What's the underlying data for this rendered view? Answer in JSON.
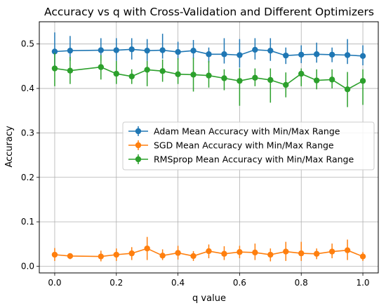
{
  "chart_data": {
    "type": "line",
    "title": "Accuracy vs q with Cross-Validation and Different Optimizers",
    "xlabel": "q value",
    "ylabel": "Accuracy",
    "xlim": [
      -0.05,
      1.05
    ],
    "ylim": [
      -0.015,
      0.55
    ],
    "xticks": [
      0.0,
      0.2,
      0.4,
      0.6,
      0.8,
      1.0
    ],
    "xtick_labels": [
      "0.0",
      "0.2",
      "0.4",
      "0.6",
      "0.8",
      "1.0"
    ],
    "yticks": [
      0.0,
      0.1,
      0.2,
      0.3,
      0.4,
      0.5
    ],
    "ytick_labels": [
      "0.0",
      "0.1",
      "0.2",
      "0.3",
      "0.4",
      "0.5"
    ],
    "grid": true,
    "legend_position": "center-right",
    "x": [
      0.0,
      0.05,
      0.15,
      0.2,
      0.25,
      0.3,
      0.35,
      0.4,
      0.45,
      0.5,
      0.55,
      0.6,
      0.65,
      0.7,
      0.75,
      0.8,
      0.85,
      0.9,
      0.95,
      1.0
    ],
    "series": [
      {
        "name": "Adam Mean Accuracy with Min/Max Range",
        "color": "#1f77b4",
        "values": [
          0.483,
          0.485,
          0.486,
          0.486,
          0.488,
          0.485,
          0.486,
          0.482,
          0.485,
          0.477,
          0.477,
          0.475,
          0.487,
          0.485,
          0.474,
          0.476,
          0.477,
          0.476,
          0.475,
          0.473
        ],
        "min": [
          0.445,
          0.462,
          0.462,
          0.462,
          0.465,
          0.462,
          0.467,
          0.465,
          0.467,
          0.458,
          0.456,
          0.447,
          0.465,
          0.462,
          0.455,
          0.457,
          0.458,
          0.459,
          0.455,
          0.452
        ],
        "max": [
          0.526,
          0.518,
          0.513,
          0.513,
          0.513,
          0.511,
          0.523,
          0.505,
          0.509,
          0.492,
          0.513,
          0.511,
          0.513,
          0.513,
          0.492,
          0.497,
          0.503,
          0.492,
          0.511,
          0.497
        ]
      },
      {
        "name": "SGD Mean Accuracy with Min/Max Range",
        "color": "#ff7f0e",
        "values": [
          0.026,
          0.023,
          0.022,
          0.026,
          0.029,
          0.04,
          0.024,
          0.03,
          0.023,
          0.034,
          0.028,
          0.032,
          0.031,
          0.026,
          0.033,
          0.029,
          0.028,
          0.033,
          0.036,
          0.022
        ],
        "min": [
          0.012,
          0.016,
          0.011,
          0.012,
          0.014,
          0.014,
          0.014,
          0.015,
          0.012,
          0.018,
          0.014,
          0.018,
          0.014,
          0.011,
          0.012,
          0.012,
          0.016,
          0.018,
          0.014,
          0.012
        ],
        "max": [
          0.041,
          0.029,
          0.035,
          0.04,
          0.043,
          0.066,
          0.038,
          0.046,
          0.034,
          0.049,
          0.045,
          0.046,
          0.051,
          0.04,
          0.055,
          0.055,
          0.04,
          0.051,
          0.06,
          0.032
        ]
      },
      {
        "name": "RMSprop Mean Accuracy with Min/Max Range",
        "color": "#2ca02c",
        "values": [
          0.445,
          0.44,
          0.448,
          0.433,
          0.427,
          0.442,
          0.439,
          0.432,
          0.431,
          0.429,
          0.423,
          0.417,
          0.424,
          0.419,
          0.408,
          0.433,
          0.418,
          0.42,
          0.398,
          0.417
        ],
        "min": [
          0.405,
          0.41,
          0.42,
          0.41,
          0.41,
          0.405,
          0.415,
          0.41,
          0.393,
          0.402,
          0.396,
          0.361,
          0.405,
          0.368,
          0.38,
          0.405,
          0.398,
          0.4,
          0.358,
          0.363
        ],
        "max": [
          0.48,
          0.471,
          0.475,
          0.462,
          0.443,
          0.462,
          0.465,
          0.468,
          0.469,
          0.462,
          0.443,
          0.445,
          0.445,
          0.445,
          0.436,
          0.445,
          0.443,
          0.443,
          0.437,
          0.443
        ]
      }
    ]
  }
}
